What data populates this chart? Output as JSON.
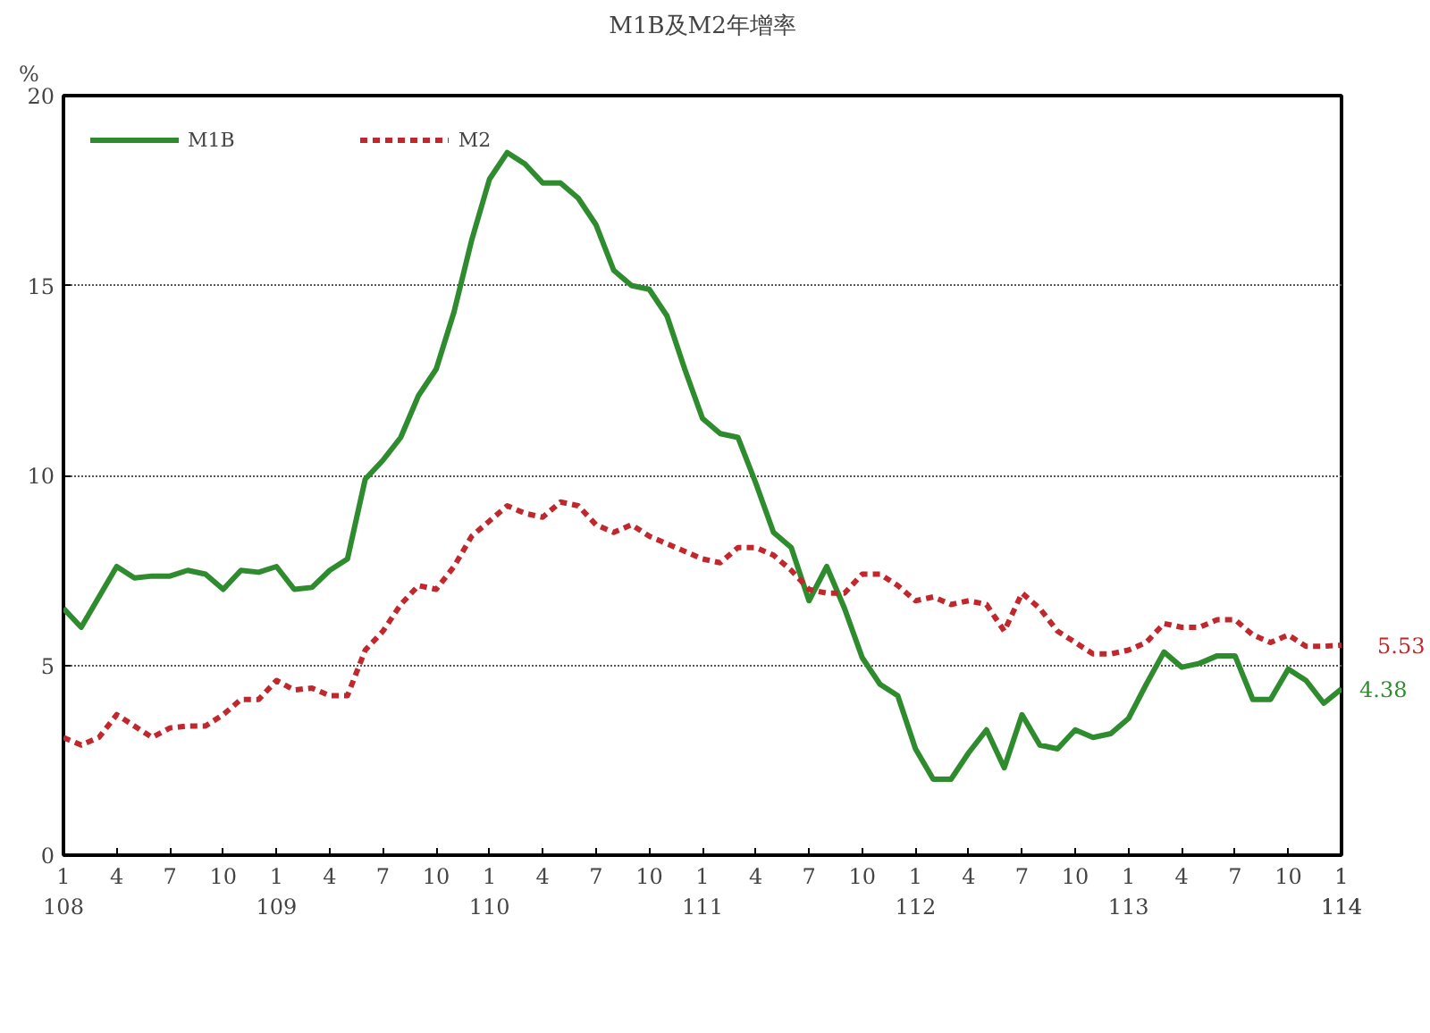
{
  "chart_data": {
    "type": "line",
    "title": "M1B及M2年增率",
    "ylabel": "%",
    "categories": [
      "1\n108",
      null,
      null,
      "4",
      null,
      null,
      "7",
      null,
      null,
      "10",
      null,
      null,
      "1\n109",
      null,
      null,
      "4",
      null,
      null,
      "7",
      null,
      null,
      "10",
      null,
      null,
      "1\n110",
      null,
      null,
      "4",
      null,
      null,
      "7",
      null,
      null,
      "10",
      null,
      null,
      "1\n111",
      null,
      null,
      "4",
      null,
      null,
      "7",
      null,
      null,
      "10",
      null,
      null,
      "1\n112",
      null,
      null,
      "4",
      null,
      null,
      "7",
      null,
      null,
      "10",
      null,
      null,
      "1\n113",
      null,
      null,
      "4",
      null,
      null,
      "7",
      null,
      null,
      "10",
      null,
      null,
      "1\n114"
    ],
    "ylim": [
      0,
      20
    ],
    "yticks": [
      0,
      5,
      10,
      15,
      20
    ],
    "grid": "y",
    "legend": "top left",
    "series": [
      {
        "name": "M1B",
        "color": "#2e8b2e",
        "line_style": "solid",
        "values": [
          6.5,
          6.0,
          6.8,
          7.6,
          7.3,
          7.35,
          7.35,
          7.5,
          7.4,
          7.0,
          7.5,
          7.45,
          7.6,
          7.0,
          7.05,
          7.5,
          7.8,
          9.9,
          10.4,
          11.0,
          12.1,
          12.8,
          14.3,
          16.2,
          17.8,
          18.5,
          18.2,
          17.7,
          17.7,
          17.3,
          16.6,
          15.4,
          15.0,
          14.9,
          14.2,
          12.8,
          11.5,
          11.1,
          11.0,
          9.8,
          8.5,
          8.1,
          6.7,
          7.6,
          6.5,
          5.2,
          4.5,
          4.2,
          2.8,
          2.0,
          2.0,
          2.7,
          3.3,
          2.3,
          3.7,
          2.9,
          2.8,
          3.3,
          3.1,
          3.2,
          3.6,
          4.5,
          5.35,
          4.95,
          5.05,
          5.25,
          5.25,
          4.1,
          4.1,
          4.9,
          4.6,
          4.0,
          4.38
        ],
        "value_labels": [
          null,
          null,
          null,
          null,
          null,
          null,
          null,
          null,
          null,
          null,
          null,
          null,
          null,
          null,
          null,
          null,
          null,
          null,
          null,
          null,
          null,
          null,
          null,
          null,
          null,
          null,
          null,
          null,
          null,
          null,
          null,
          null,
          null,
          null,
          null,
          null,
          null,
          null,
          null,
          null,
          null,
          null,
          null,
          null,
          null,
          null,
          null,
          null,
          null,
          null,
          null,
          null,
          null,
          null,
          null,
          null,
          null,
          null,
          null,
          null,
          null,
          null,
          null,
          null,
          null,
          null,
          null,
          null,
          null,
          null,
          null,
          null,
          "4.38"
        ]
      },
      {
        "name": "M2",
        "color": "#c0282d",
        "line_style": "dashed",
        "values": [
          3.1,
          2.9,
          3.1,
          3.7,
          3.4,
          3.1,
          3.35,
          3.4,
          3.4,
          3.7,
          4.1,
          4.1,
          4.6,
          4.35,
          4.4,
          4.2,
          4.2,
          5.4,
          5.9,
          6.6,
          7.1,
          7.0,
          7.6,
          8.4,
          8.8,
          9.2,
          9.0,
          8.9,
          9.3,
          9.2,
          8.7,
          8.5,
          8.7,
          8.4,
          8.2,
          8.0,
          7.8,
          7.7,
          8.1,
          8.1,
          7.9,
          7.5,
          7.0,
          6.9,
          6.9,
          7.4,
          7.4,
          7.1,
          6.7,
          6.8,
          6.6,
          6.7,
          6.6,
          5.9,
          6.9,
          6.5,
          5.9,
          5.6,
          5.3,
          5.3,
          5.4,
          5.6,
          6.1,
          6.0,
          6.0,
          6.2,
          6.2,
          5.8,
          5.6,
          5.8,
          5.5,
          5.5,
          5.53
        ],
        "value_labels": [
          null,
          null,
          null,
          null,
          null,
          null,
          null,
          null,
          null,
          null,
          null,
          null,
          null,
          null,
          null,
          null,
          null,
          null,
          null,
          null,
          null,
          null,
          null,
          null,
          null,
          null,
          null,
          null,
          null,
          null,
          null,
          null,
          null,
          null,
          null,
          null,
          null,
          null,
          null,
          null,
          null,
          null,
          null,
          null,
          null,
          null,
          null,
          null,
          null,
          null,
          null,
          null,
          null,
          null,
          null,
          null,
          null,
          null,
          null,
          null,
          null,
          null,
          null,
          null,
          null,
          null,
          null,
          null,
          null,
          null,
          null,
          null,
          "5.53"
        ]
      }
    ]
  }
}
